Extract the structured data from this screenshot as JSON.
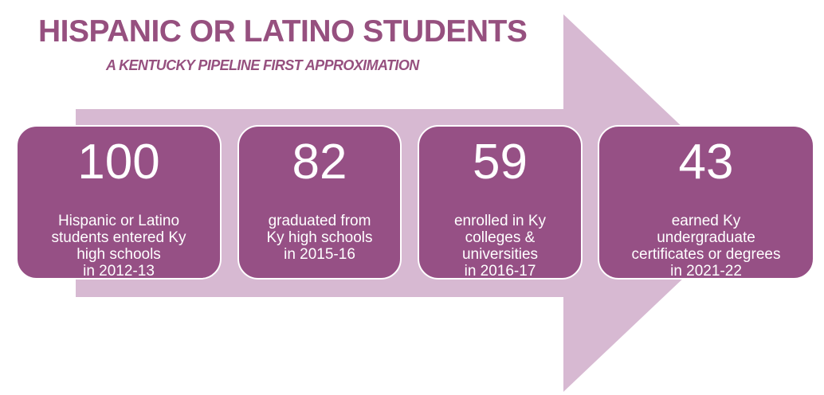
{
  "title": "HISPANIC OR LATINO STUDENTS",
  "subtitle": "A KENTUCKY PIPELINE FIRST APPROXIMATION",
  "colors": {
    "box_fill": "#965085",
    "arrow_fill": "#d7b9d2",
    "title_text": "#96507f",
    "box_text": "#ffffff"
  },
  "stages": [
    {
      "value": "100",
      "description": "Hispanic or Latino\nstudents entered Ky\nhigh schools\nin 2012-13"
    },
    {
      "value": "82",
      "description": "graduated from\nKy high schools\nin 2015-16"
    },
    {
      "value": "59",
      "description": "enrolled in Ky\ncolleges &\nuniversities\nin 2016-17"
    },
    {
      "value": "43",
      "description": "earned Ky\nundergraduate\ncertificates or degrees\nin 2021-22"
    }
  ]
}
